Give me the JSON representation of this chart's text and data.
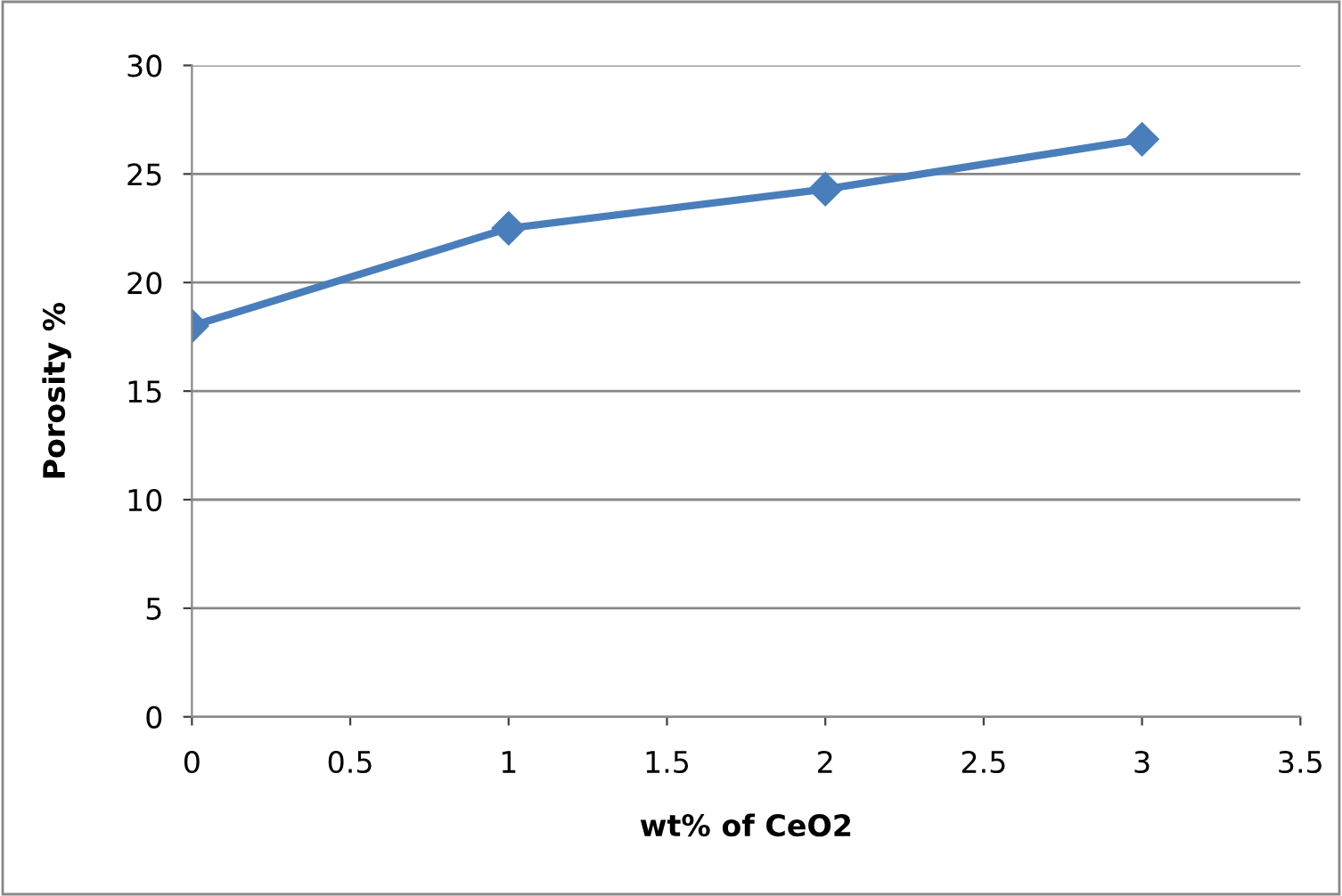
{
  "chart_data": {
    "type": "line",
    "xlabel": "wt% of CeO2",
    "ylabel": "Porosity %",
    "x": [
      0,
      1,
      2,
      3
    ],
    "series": [
      {
        "color": "#4a7ebb",
        "values": [
          18,
          22.5,
          24.3,
          26.6
        ]
      }
    ],
    "xlim": [
      0,
      3.5
    ],
    "xticks": [
      0,
      0.5,
      1,
      1.5,
      2,
      2.5,
      3,
      3.5
    ],
    "ylim": [
      0,
      30
    ],
    "yticks": [
      0,
      5,
      10,
      15,
      20,
      25,
      30
    ],
    "grid": "y",
    "legend": false,
    "marker": "diamond",
    "line_style": "solid"
  }
}
